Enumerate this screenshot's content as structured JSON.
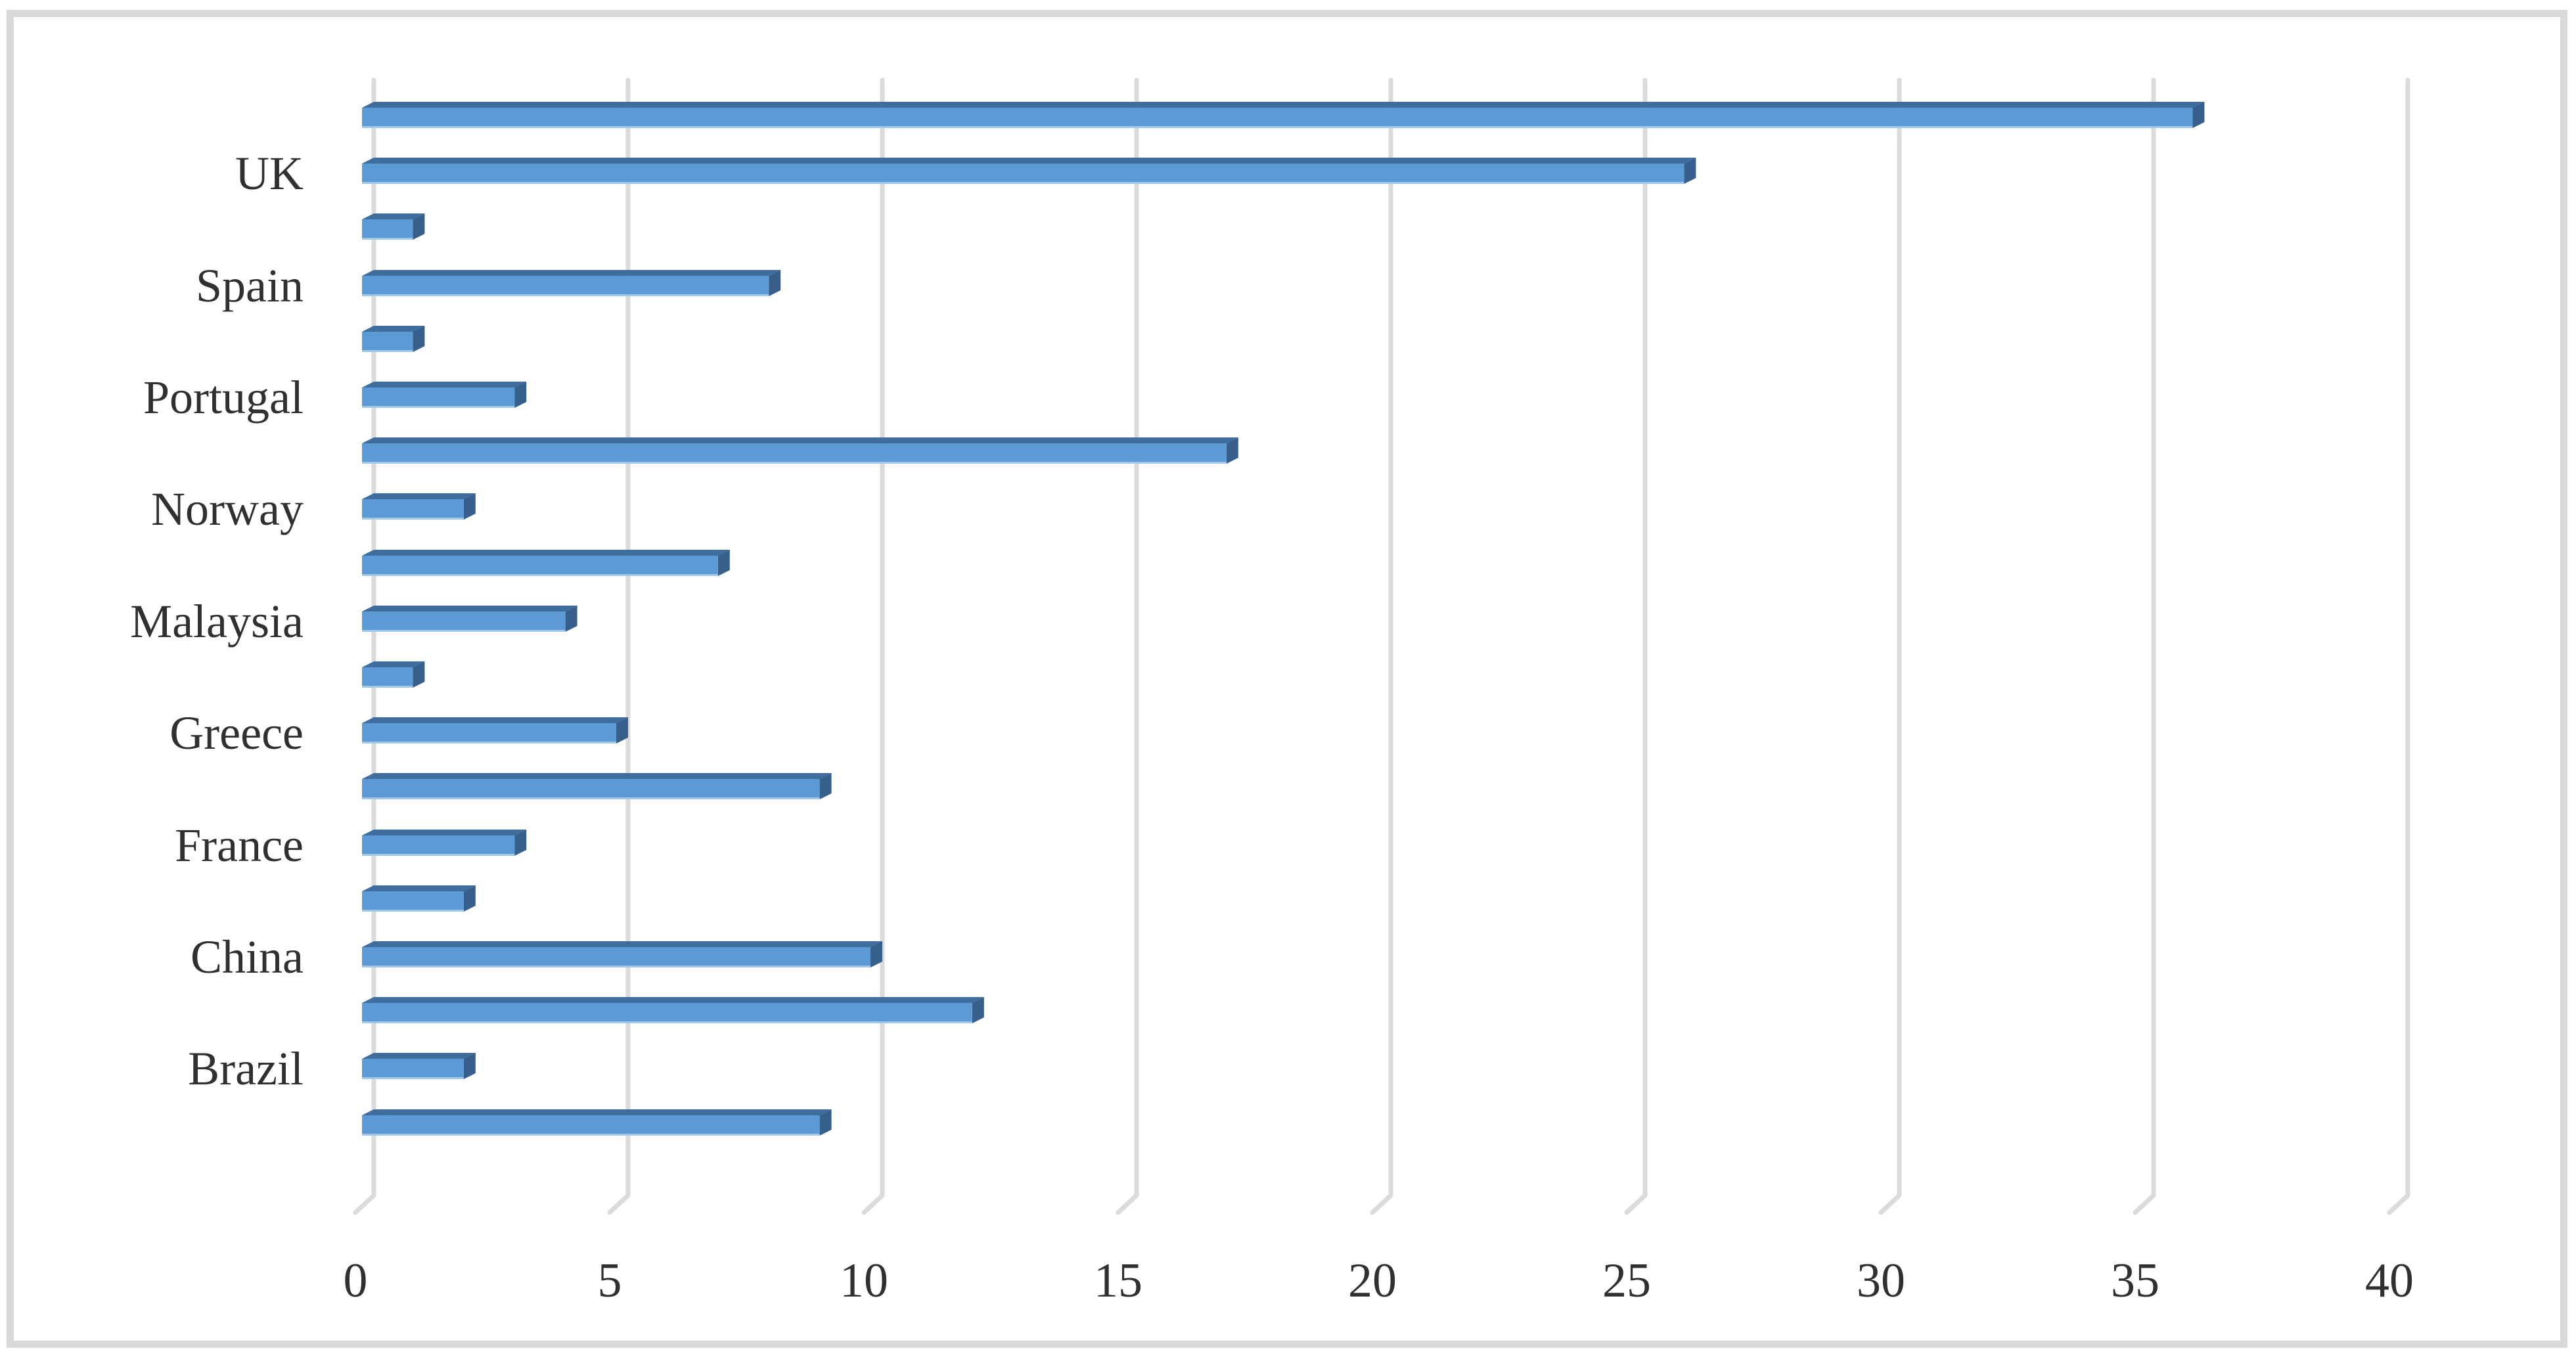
{
  "chart_data": {
    "type": "bar",
    "orientation": "horizontal",
    "style": "3d",
    "title": "",
    "xlabel": "",
    "ylabel": "",
    "xlim": [
      0,
      40
    ],
    "x_ticks": [
      0,
      5,
      10,
      15,
      20,
      25,
      30,
      35,
      40
    ],
    "grid": "vertical-gridlines-on",
    "legend": "none",
    "categories": [
      "UK",
      "Spain",
      "Portugal",
      "Norway",
      "Malaysia",
      "Greece",
      "France",
      "China",
      "Brazil"
    ],
    "rows": [
      {
        "label": "",
        "value": 36
      },
      {
        "label": "UK",
        "value": 26
      },
      {
        "label": "",
        "value": 1
      },
      {
        "label": "Spain",
        "value": 8
      },
      {
        "label": "",
        "value": 1
      },
      {
        "label": "Portugal",
        "value": 3
      },
      {
        "label": "",
        "value": 17
      },
      {
        "label": "Norway",
        "value": 2
      },
      {
        "label": "",
        "value": 7
      },
      {
        "label": "Malaysia",
        "value": 4
      },
      {
        "label": "",
        "value": 1
      },
      {
        "label": "Greece",
        "value": 5
      },
      {
        "label": "",
        "value": 9
      },
      {
        "label": "France",
        "value": 3
      },
      {
        "label": "",
        "value": 2
      },
      {
        "label": "China",
        "value": 10
      },
      {
        "label": "",
        "value": 12
      },
      {
        "label": "Brazil",
        "value": 2
      },
      {
        "label": "",
        "value": 9
      }
    ],
    "colors": {
      "bar_face": "#5B9AD4",
      "bar_top": "#3F6D9E",
      "bar_side": "#365F8C",
      "bar_bottom_highlight": "#BAD5EF",
      "gridline": "#DBDBDB",
      "text": "#303030",
      "frame_border": "#D9D9D9",
      "background": "#FFFFFF"
    }
  }
}
